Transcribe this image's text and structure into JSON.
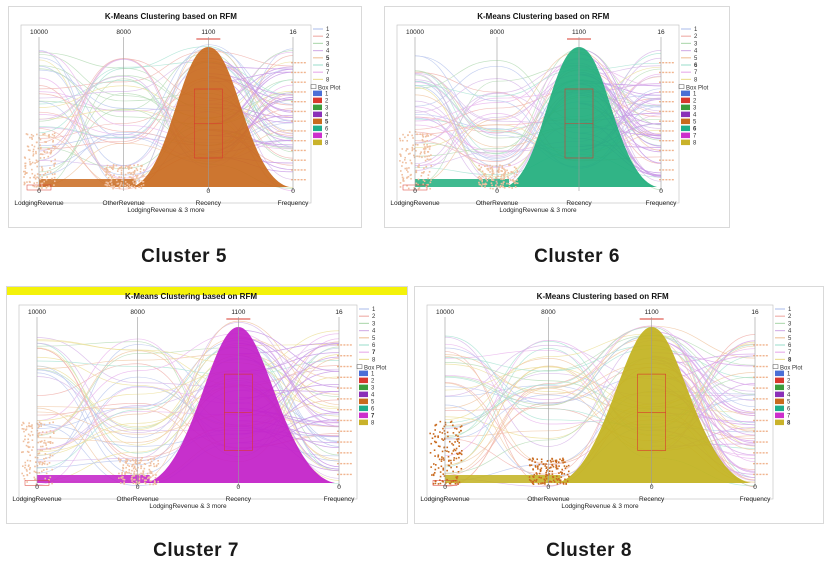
{
  "chart_data": [
    {
      "type": "parallel-coordinates",
      "title": "K-Means Clustering based on RFM",
      "caption": "Cluster 5",
      "highlight_cluster": "5",
      "highlight_color": "#c96a1e",
      "highlight_title_bar": false,
      "axes": [
        "LodgingRevenue",
        "OtherRevenue",
        "Recency",
        "Frequency"
      ],
      "axis_max_labels": [
        "10000",
        "8000",
        "1100",
        "16"
      ],
      "axis_min_labels": [
        "0",
        "",
        "0",
        "0"
      ],
      "xlabel": "LodgingRevenue & 3 more",
      "legend": {
        "series": [
          "1",
          "2",
          "3",
          "4",
          "5",
          "6",
          "7",
          "8"
        ],
        "boxplot_label": "Box Plot",
        "colors": [
          "#4b6fd6",
          "#d9382e",
          "#3c9c3c",
          "#8a2fb8",
          "#c96a1e",
          "#1fae8c",
          "#cc2fcc",
          "#c9b22a"
        ]
      }
    },
    {
      "type": "parallel-coordinates",
      "title": "K-Means Clustering based on RFM",
      "caption": "Cluster 6",
      "highlight_cluster": "6",
      "highlight_color": "#1fae7c",
      "highlight_title_bar": false,
      "axes": [
        "LodgingRevenue",
        "OtherRevenue",
        "Recency",
        "Frequency"
      ],
      "axis_max_labels": [
        "10000",
        "8000",
        "1100",
        "16"
      ],
      "axis_min_labels": [
        "0",
        "0",
        "",
        "0"
      ],
      "xlabel": "LodgingRevenue & 3 more",
      "legend": {
        "series": [
          "1",
          "2",
          "3",
          "4",
          "5",
          "6",
          "7",
          "8"
        ],
        "boxplot_label": "Box Plot",
        "colors": [
          "#4b6fd6",
          "#d9382e",
          "#3c9c3c",
          "#8a2fb8",
          "#c96a1e",
          "#1fae8c",
          "#cc2fcc",
          "#c9b22a"
        ]
      }
    },
    {
      "type": "parallel-coordinates",
      "title": "K-Means Clustering based on RFM",
      "caption": "Cluster 7",
      "highlight_cluster": "7",
      "highlight_color": "#c21ec8",
      "highlight_title_bar": true,
      "axes": [
        "LodgingRevenue",
        "OtherRevenue",
        "Recency",
        "Frequency"
      ],
      "axis_max_labels": [
        "10000",
        "8000",
        "1100",
        "16"
      ],
      "axis_min_labels": [
        "0",
        "0",
        "0",
        "0"
      ],
      "xlabel": "LodgingRevenue & 3 more",
      "legend": {
        "series": [
          "1",
          "2",
          "3",
          "4",
          "5",
          "6",
          "7",
          "8"
        ],
        "boxplot_label": "Box Plot",
        "colors": [
          "#4b6fd6",
          "#d9382e",
          "#3c9c3c",
          "#8a2fb8",
          "#c96a1e",
          "#1fae8c",
          "#cc2fcc",
          "#c9b22a"
        ]
      }
    },
    {
      "type": "parallel-coordinates",
      "title": "K-Means Clustering based on RFM",
      "caption": "Cluster 8",
      "highlight_cluster": "8",
      "highlight_color": "#c2b21e",
      "highlight_title_bar": false,
      "axes": [
        "LodgingRevenue",
        "OtherRevenue",
        "Recency",
        "Frequency"
      ],
      "axis_max_labels": [
        "10000",
        "8000",
        "1100",
        "16"
      ],
      "axis_min_labels": [
        "0",
        "0",
        "0",
        "0"
      ],
      "xlabel": "LodgingRevenue & 3 more",
      "legend": {
        "series": [
          "1",
          "2",
          "3",
          "4",
          "5",
          "6",
          "7",
          "8"
        ],
        "boxplot_label": "Box Plot",
        "colors": [
          "#4b6fd6",
          "#d9382e",
          "#3c9c3c",
          "#8a2fb8",
          "#c96a1e",
          "#1fae8c",
          "#cc2fcc",
          "#c9b22a"
        ]
      }
    }
  ]
}
